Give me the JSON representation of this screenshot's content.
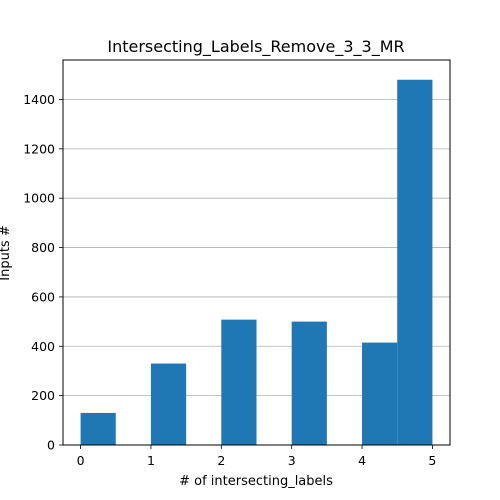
{
  "chart_data": {
    "type": "bar",
    "title": "Intersecting_Labels_Remove_3_3_MR",
    "xlabel": "# of intersecting_labels",
    "ylabel": "Inputs #",
    "xlim": [
      -0.25,
      5.25
    ],
    "ylim": [
      0,
      1560
    ],
    "x_ticks": [
      0,
      1,
      2,
      3,
      4,
      5
    ],
    "y_ticks": [
      0,
      200,
      400,
      600,
      800,
      1000,
      1200,
      1400
    ],
    "grid": "horizontal",
    "bar_color": "#1f77b4",
    "bars": [
      {
        "x0": 0.0,
        "x1": 0.5,
        "value": 130
      },
      {
        "x0": 1.0,
        "x1": 1.5,
        "value": 330
      },
      {
        "x0": 2.0,
        "x1": 2.5,
        "value": 508
      },
      {
        "x0": 3.0,
        "x1": 3.5,
        "value": 500
      },
      {
        "x0": 4.0,
        "x1": 4.5,
        "value": 415
      },
      {
        "x0": 4.5,
        "x1": 5.0,
        "value": 1480
      }
    ]
  }
}
